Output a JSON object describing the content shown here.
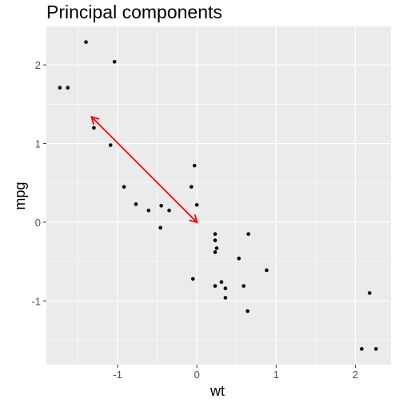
{
  "chart_data": {
    "type": "scatter",
    "title": "Principal components",
    "xlabel": "wt",
    "ylabel": "mpg",
    "xlim": [
      -1.9,
      2.45
    ],
    "ylim": [
      -1.81,
      2.49
    ],
    "xticks": [
      -1,
      0,
      1,
      2
    ],
    "yticks": [
      -1,
      0,
      1,
      2
    ],
    "grid": true,
    "points": [
      {
        "x": -1.4,
        "y": 2.29
      },
      {
        "x": -1.04,
        "y": 2.04
      },
      {
        "x": -1.73,
        "y": 1.71
      },
      {
        "x": -1.63,
        "y": 1.71
      },
      {
        "x": -1.3,
        "y": 1.2
      },
      {
        "x": -1.09,
        "y": 0.98
      },
      {
        "x": -0.92,
        "y": 0.45
      },
      {
        "x": -0.77,
        "y": 0.23
      },
      {
        "x": -0.61,
        "y": 0.15
      },
      {
        "x": -0.45,
        "y": 0.21
      },
      {
        "x": -0.35,
        "y": 0.15
      },
      {
        "x": -0.46,
        "y": -0.07
      },
      {
        "x": -0.07,
        "y": 0.45
      },
      {
        "x": -0.03,
        "y": 0.72
      },
      {
        "x": 0.0,
        "y": 0.22
      },
      {
        "x": -0.05,
        "y": -0.72
      },
      {
        "x": 0.23,
        "y": -0.15
      },
      {
        "x": 0.23,
        "y": -0.23
      },
      {
        "x": 0.25,
        "y": -0.33
      },
      {
        "x": 0.23,
        "y": -0.38
      },
      {
        "x": 0.65,
        "y": -0.15
      },
      {
        "x": 0.53,
        "y": -0.46
      },
      {
        "x": 0.88,
        "y": -0.61
      },
      {
        "x": 0.23,
        "y": -0.81
      },
      {
        "x": 0.31,
        "y": -0.76
      },
      {
        "x": 0.36,
        "y": -0.84
      },
      {
        "x": 0.59,
        "y": -0.81
      },
      {
        "x": 0.36,
        "y": -0.96
      },
      {
        "x": 0.64,
        "y": -1.13
      },
      {
        "x": 2.18,
        "y": -0.9
      },
      {
        "x": 2.08,
        "y": -1.61
      },
      {
        "x": 2.26,
        "y": -1.61
      }
    ],
    "arrow": {
      "from": [
        0.0,
        0.0
      ],
      "to": [
        -1.33,
        1.34
      ],
      "color": "#ff0000"
    },
    "colors": {
      "panel": "#ebebeb",
      "grid": "#ffffff",
      "point": "#000000",
      "text": "#4d4d4d"
    }
  }
}
